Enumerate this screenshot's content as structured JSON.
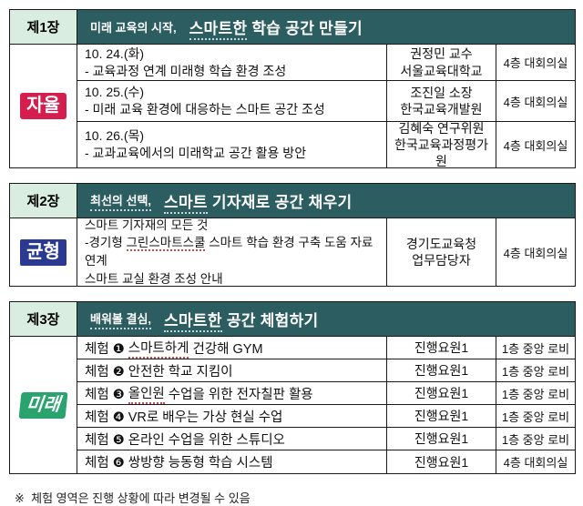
{
  "colors": {
    "header_teal": "#2B5D61",
    "chapter_mint": "#D9EDE1",
    "badge_red": "#D41E4E",
    "badge_navy": "#2B3A90",
    "badge_green": "#2AA36E"
  },
  "section1": {
    "chapter": "제1장",
    "title": {
      "prefix": "미래 교육의 시작,",
      "main_marked": "스마트한",
      "main_rest": " 학습 공간 만들기"
    },
    "badge": "자율",
    "rows": [
      {
        "date": "10. 24.(화)",
        "topic": "- 교육과정 연계 미래형 학습 환경 조성",
        "speaker1": "권정민 교수",
        "speaker2": "서울교육대학교",
        "location": "4층 대회의실"
      },
      {
        "date": "10. 25.(수)",
        "topic": "- 미래 교육 환경에 대응하는 스마트 공간 조성",
        "speaker1": "조진일 소장",
        "speaker2": "한국교육개발원",
        "location": "4층 대회의실"
      },
      {
        "date": "10. 26.(목)",
        "topic": "- 교과교육에서의 미래학교 공간 활용 방안",
        "speaker1": "김혜숙 연구위원",
        "speaker2": "한국교육과정평가원",
        "location": "4층 대회의실"
      }
    ]
  },
  "section2": {
    "chapter": "제2장",
    "title": {
      "prefix": "최선의 선택,",
      "main_marked": "스마트",
      "main_rest": " 기자재로 공간 채우기"
    },
    "badge": "균형",
    "row": {
      "line1": "스마트 기자재의 모든 것",
      "line2_pre": "-경기형 ",
      "line2_marked": "그린스마트스쿨",
      "line2_rest": " 스마트 학습 환경 구축 도움 자료 연계",
      "line3": "스마트 교실 환경 조성 안내",
      "speaker1": "경기도교육청",
      "speaker2": "업무담당자",
      "location": "4층 대회의실"
    }
  },
  "section3": {
    "chapter": "제3장",
    "title": {
      "prefix": "배워볼 결심,",
      "main_marked": "스마트한",
      "main_rest": " 공간 체험하기"
    },
    "badge": "미래",
    "rows": [
      {
        "pre": "체험 ❶ ",
        "marked": "스마트하게",
        "rest": " 건강해 GYM",
        "staff": "진행요원1",
        "location": "1층 중앙 로비"
      },
      {
        "pre": "체험 ❷ 안전한 학교 지킴이",
        "marked": "",
        "rest": "",
        "staff": "진행요원1",
        "location": "1층 중앙 로비"
      },
      {
        "pre": "체험 ❸ ",
        "marked": "올인원",
        "rest": " 수업을 위한 전자칠판 활용",
        "staff": "진행요원1",
        "location": "1층 중앙 로비"
      },
      {
        "pre": "체험 ❹ VR로 배우는 가상 현실 수업",
        "marked": "",
        "rest": "",
        "staff": "진행요원1",
        "location": "1층 중앙 로비"
      },
      {
        "pre": "체험 ❺ 온라인 수업을 위한 스튜디오",
        "marked": "",
        "rest": "",
        "staff": "진행요원1",
        "location": "1층 중앙 로비"
      },
      {
        "pre": "체험 ❻ 쌍방향 능동형 학습 시스템",
        "marked": "",
        "rest": "",
        "staff": "진행요원1",
        "location": "4층 대회의실"
      }
    ]
  },
  "footnote": "※  체험 영역은 진행 상황에 따라 변경될 수 있음"
}
